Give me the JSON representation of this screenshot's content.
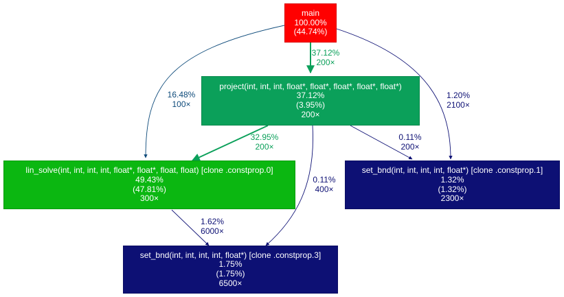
{
  "nodes": {
    "main": {
      "name": "main",
      "total": "100.00%",
      "self": "(44.74%)",
      "calls": "",
      "color": "#ff0000"
    },
    "project": {
      "name": "project(int, int, int, float*, float*, float*, float*, float*)",
      "total": "37.12%",
      "self": "(3.95%)",
      "calls": "200×",
      "color": "#0ba05a"
    },
    "lin_solve": {
      "name": "lin_solve(int, int, int, int, float*, float*, float, float) [clone .constprop.0]",
      "total": "49.43%",
      "self": "(47.81%)",
      "calls": "300×",
      "color": "#0bb711"
    },
    "set_bnd1": {
      "name": "set_bnd(int, int, int, int, float*) [clone .constprop.1]",
      "total": "1.32%",
      "self": "(1.32%)",
      "calls": "2300×",
      "color": "#0d1074"
    },
    "set_bnd3": {
      "name": "set_bnd(int, int, int, int, float*) [clone .constprop.3]",
      "total": "1.75%",
      "self": "(1.75%)",
      "calls": "6500×",
      "color": "#0d1074"
    }
  },
  "edges": [
    {
      "from": "main",
      "to": "project",
      "pct": "37.12%",
      "calls": "200×",
      "color": "#0ba05a"
    },
    {
      "from": "main",
      "to": "lin_solve",
      "pct": "16.48%",
      "calls": "100×",
      "color": "#0d4a7a"
    },
    {
      "from": "main",
      "to": "set_bnd1",
      "pct": "1.20%",
      "calls": "2100×",
      "color": "#0d1074"
    },
    {
      "from": "project",
      "to": "lin_solve",
      "pct": "32.95%",
      "calls": "200×",
      "color": "#0ba05a"
    },
    {
      "from": "project",
      "to": "set_bnd3",
      "pct": "0.11%",
      "calls": "400×",
      "color": "#0d1074"
    },
    {
      "from": "project",
      "to": "set_bnd1",
      "pct": "0.11%",
      "calls": "200×",
      "color": "#0d1074"
    },
    {
      "from": "lin_solve",
      "to": "set_bnd3",
      "pct": "1.62%",
      "calls": "6000×",
      "color": "#0d1074"
    }
  ]
}
